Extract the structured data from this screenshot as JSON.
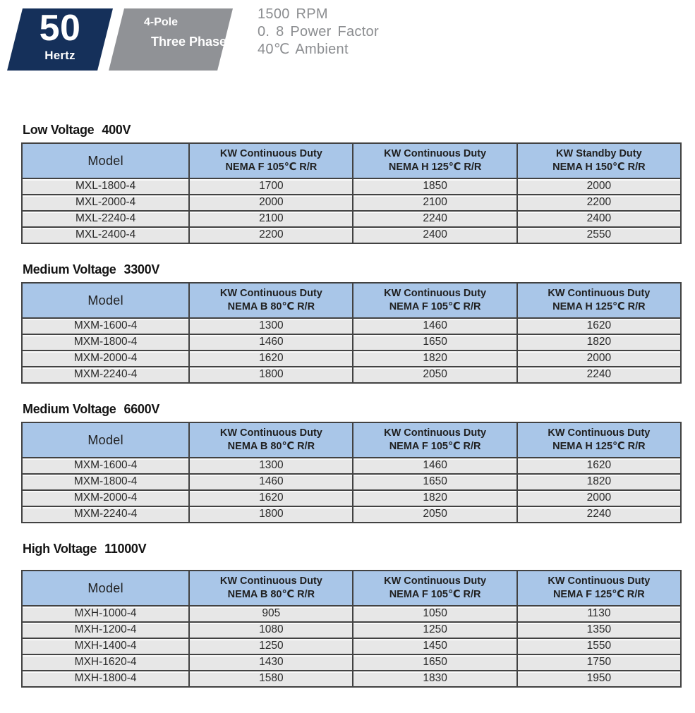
{
  "header": {
    "frequency_badge": {
      "value": "50",
      "unit": "Hertz"
    },
    "pole_badge": {
      "line1": "4-Pole",
      "line2": "Three Phase"
    },
    "specs": {
      "rpm": "1500 RPM",
      "power_factor": "0. 8 Power Factor",
      "ambient": "40℃ Ambient"
    }
  },
  "colors": {
    "navy": "#15305a",
    "badge-gray": "#909296",
    "header-blue": "#a9c6e8",
    "row-gray": "#e7e7e7",
    "border-dark": "#424242",
    "spec-gray": "#8b8d90"
  },
  "tables": [
    {
      "title": {
        "label": "Low Voltage",
        "voltage": "400V"
      },
      "columns": [
        {
          "line1": "Model"
        },
        {
          "line1": "KW Continuous Duty",
          "line2": "NEMA F 105℃ R/R"
        },
        {
          "line1": "KW Continuous Duty",
          "line2": "NEMA H 125℃ R/R"
        },
        {
          "line1": "KW Standby Duty",
          "line2": "NEMA H 150℃ R/R"
        }
      ],
      "rows": [
        [
          "MXL-1800-4",
          "1700",
          "1850",
          "2000"
        ],
        [
          "MXL-2000-4",
          "2000",
          "2100",
          "2200"
        ],
        [
          "MXL-2240-4",
          "2100",
          "2240",
          "2400"
        ],
        [
          "MXL-2400-4",
          "2200",
          "2400",
          "2550"
        ]
      ]
    },
    {
      "title": {
        "label": "Medium Voltage",
        "voltage": "3300V"
      },
      "columns": [
        {
          "line1": "Model"
        },
        {
          "line1": "KW Continuous Duty",
          "line2": "NEMA B 80℃ R/R"
        },
        {
          "line1": "KW Continuous Duty",
          "line2": "NEMA F 105℃ R/R"
        },
        {
          "line1": "KW Continuous Duty",
          "line2": "NEMA H 125℃ R/R"
        }
      ],
      "rows": [
        [
          "MXM-1600-4",
          "1300",
          "1460",
          "1620"
        ],
        [
          "MXM-1800-4",
          "1460",
          "1650",
          "1820"
        ],
        [
          "MXM-2000-4",
          "1620",
          "1820",
          "2000"
        ],
        [
          "MXM-2240-4",
          "1800",
          "2050",
          "2240"
        ]
      ]
    },
    {
      "title": {
        "label": "Medium Voltage",
        "voltage": "6600V"
      },
      "columns": [
        {
          "line1": "Model"
        },
        {
          "line1": "KW Continuous Duty",
          "line2": "NEMA B 80℃ R/R"
        },
        {
          "line1": "KW Continuous Duty",
          "line2": "NEMA F 105℃ R/R"
        },
        {
          "line1": "KW Continuous Duty",
          "line2": "NEMA H 125℃ R/R"
        }
      ],
      "rows": [
        [
          "MXM-1600-4",
          "1300",
          "1460",
          "1620"
        ],
        [
          "MXM-1800-4",
          "1460",
          "1650",
          "1820"
        ],
        [
          "MXM-2000-4",
          "1620",
          "1820",
          "2000"
        ],
        [
          "MXM-2240-4",
          "1800",
          "2050",
          "2240"
        ]
      ]
    },
    {
      "title": {
        "label": "High Voltage",
        "voltage": "11000V"
      },
      "columns": [
        {
          "line1": "Model"
        },
        {
          "line1": "KW Continuous Duty",
          "line2": "NEMA B 80℃ R/R"
        },
        {
          "line1": "KW Continuous Duty",
          "line2": "NEMA F 105℃ R/R"
        },
        {
          "line1": "KW Continuous Duty",
          "line2": "NEMA F 125℃ R/R"
        }
      ],
      "rows": [
        [
          "MXH-1000-4",
          "905",
          "1050",
          "1130"
        ],
        [
          "MXH-1200-4",
          "1080",
          "1250",
          "1350"
        ],
        [
          "MXH-1400-4",
          "1250",
          "1450",
          "1550"
        ],
        [
          "MXH-1620-4",
          "1430",
          "1650",
          "1750"
        ],
        [
          "MXH-1800-4",
          "1580",
          "1830",
          "1950"
        ]
      ]
    }
  ]
}
